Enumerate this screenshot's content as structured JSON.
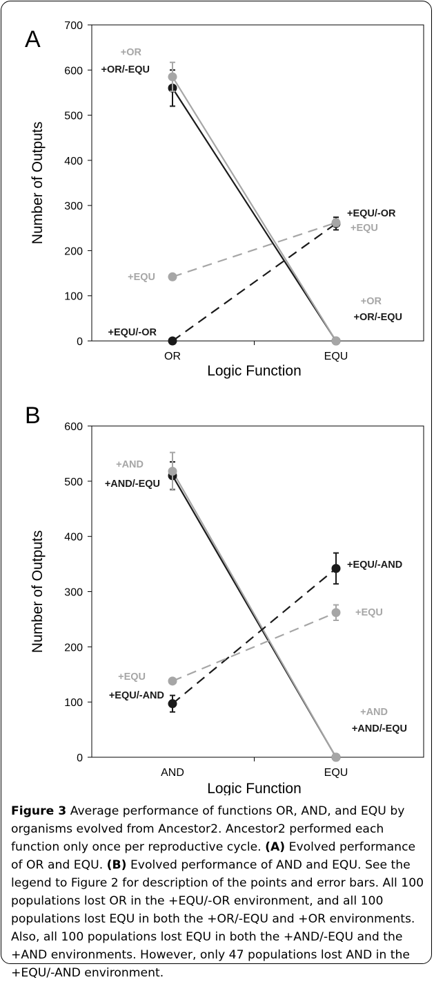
{
  "colors": {
    "black": "#1a1a1a",
    "gray": "#a6a6a6",
    "axis": "#000000"
  },
  "chart_data": [
    {
      "type": "line",
      "panel_label": "A",
      "xlabel": "Logic Function",
      "ylabel": "Number of Outputs",
      "categories": [
        "OR",
        "EQU"
      ],
      "ylim": [
        0,
        700
      ],
      "yticks": [
        0,
        100,
        200,
        300,
        400,
        500,
        600,
        700
      ],
      "series": [
        {
          "name": "+OR/-EQU",
          "color": "#1a1a1a",
          "dash": false,
          "values": [
            560,
            0
          ],
          "errors": [
            40,
            0
          ],
          "labels": [
            "+OR/-EQU",
            "+OR/-EQU"
          ]
        },
        {
          "name": "+OR",
          "color": "#a6a6a6",
          "dash": false,
          "values": [
            585,
            0
          ],
          "errors": [
            32,
            0
          ],
          "labels": [
            "+OR",
            "+OR"
          ]
        },
        {
          "name": "+EQU/-OR",
          "color": "#1a1a1a",
          "dash": true,
          "values": [
            0,
            260
          ],
          "errors": [
            0,
            14
          ],
          "labels": [
            "+EQU/-OR",
            "+EQU/-OR"
          ]
        },
        {
          "name": "+EQU",
          "color": "#a6a6a6",
          "dash": true,
          "values": [
            142,
            262
          ],
          "errors": [
            0,
            8
          ],
          "labels": [
            "+EQU",
            "+EQU"
          ]
        }
      ]
    },
    {
      "type": "line",
      "panel_label": "B",
      "xlabel": "Logic Function",
      "ylabel": "Number of Outputs",
      "categories": [
        "AND",
        "EQU"
      ],
      "ylim": [
        0,
        600
      ],
      "yticks": [
        0,
        100,
        200,
        300,
        400,
        500,
        600
      ],
      "series": [
        {
          "name": "+AND/-EQU",
          "color": "#1a1a1a",
          "dash": false,
          "values": [
            510,
            0
          ],
          "errors": [
            25,
            0
          ],
          "labels": [
            "+AND/-EQU",
            "+AND/-EQU"
          ]
        },
        {
          "name": "+AND",
          "color": "#a6a6a6",
          "dash": false,
          "values": [
            518,
            0
          ],
          "errors": [
            34,
            0
          ],
          "labels": [
            "+AND",
            "+AND"
          ]
        },
        {
          "name": "+EQU/-AND",
          "color": "#1a1a1a",
          "dash": true,
          "values": [
            97,
            342
          ],
          "errors": [
            15,
            28
          ],
          "labels": [
            "+EQU/-AND",
            "+EQU/-AND"
          ]
        },
        {
          "name": "+EQU",
          "color": "#a6a6a6",
          "dash": true,
          "values": [
            138,
            262
          ],
          "errors": [
            0,
            14
          ],
          "labels": [
            "+EQU",
            "+EQU"
          ]
        }
      ]
    }
  ],
  "caption": {
    "figure_label": "Figure 3",
    "text_1": " Average performance of functions OR, AND, and EQU by organisms evolved from Ancestor2. Ancestor2 performed each function only once per reproductive cycle. ",
    "label_a": "(A)",
    "text_2": " Evolved performance of OR and EQU. ",
    "label_b": "(B)",
    "text_3": " Evolved performance of AND and EQU. See the legend to Figure 2 for description of the points and error bars. All 100 populations lost OR in the +EQU/-OR environment, and all 100 populations lost EQU in both the +OR/-EQU and +OR environments. Also, all 100 populations lost EQU in both the +AND/-EQU and the +AND environments. However, only 47 populations lost AND in the +EQU/-AND environment."
  }
}
